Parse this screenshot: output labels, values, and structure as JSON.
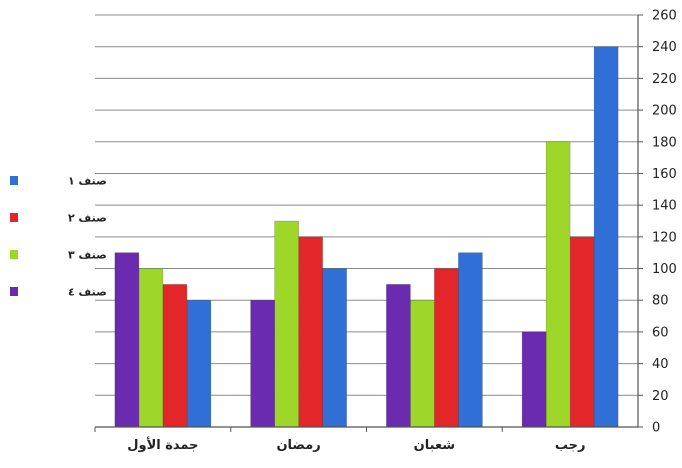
{
  "chart_data": {
    "type": "bar",
    "categories": [
      "رجب",
      "شعبان",
      "رمضان",
      "جمدة الأول"
    ],
    "series": [
      {
        "name": "صنف ١",
        "color": "#2f6fd6",
        "values": [
          240,
          110,
          100,
          80
        ]
      },
      {
        "name": "صنف ٢",
        "color": "#e3262a",
        "values": [
          120,
          100,
          120,
          90
        ]
      },
      {
        "name": "صنف ٣",
        "color": "#9fd62a",
        "values": [
          180,
          80,
          130,
          100
        ]
      },
      {
        "name": "صنف ٤",
        "color": "#6a2bb0",
        "values": [
          60,
          90,
          80,
          110
        ]
      }
    ],
    "ylim": [
      0,
      260
    ],
    "ytick_step": 20,
    "yaxis_side": "right",
    "direction": "rtl",
    "grid": true,
    "legend": "left",
    "title": "",
    "xlabel": "",
    "ylabel": ""
  }
}
